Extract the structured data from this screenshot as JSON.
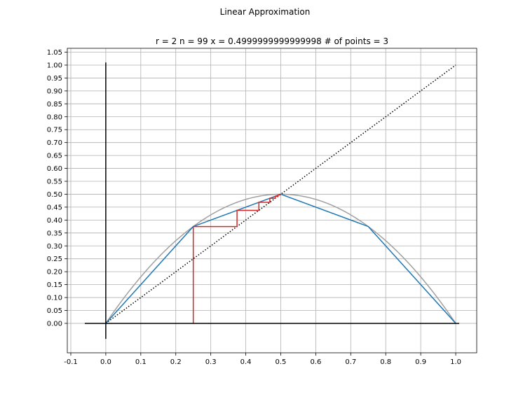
{
  "figure": {
    "suptitle": "Linear Approximation"
  },
  "chart_data": {
    "type": "line",
    "title": "r = 2 n = 99 x = 0.4999999999999998 # of points = 3",
    "xlabel": "",
    "ylabel": "",
    "xlim": [
      -0.11,
      1.06
    ],
    "ylim": [
      -0.114,
      1.065
    ],
    "grid": true,
    "x_ticks": [
      -0.1,
      0.0,
      0.1,
      0.2,
      0.3,
      0.4,
      0.5,
      0.6,
      0.7,
      0.8,
      0.9,
      1.0
    ],
    "x_tick_labels": [
      "-0.1",
      "0.0",
      "0.1",
      "0.2",
      "0.3",
      "0.4",
      "0.5",
      "0.6",
      "0.7",
      "0.8",
      "0.9",
      "1.0"
    ],
    "y_ticks": [
      0.0,
      0.05,
      0.1,
      0.15,
      0.2,
      0.25,
      0.3,
      0.35,
      0.4,
      0.45,
      0.5,
      0.55,
      0.6,
      0.65,
      0.7,
      0.75,
      0.8,
      0.85,
      0.9,
      0.95,
      1.0,
      1.05
    ],
    "y_tick_labels": [
      "0.00",
      "0.05",
      "0.10",
      "0.15",
      "0.20",
      "0.25",
      "0.30",
      "0.35",
      "0.40",
      "0.45",
      "0.50",
      "0.55",
      "0.60",
      "0.65",
      "0.70",
      "0.75",
      "0.80",
      "0.85",
      "0.90",
      "0.95",
      "1.00",
      "1.05"
    ],
    "series": [
      {
        "role": "parabola",
        "color": "#a0a0a0",
        "style": "solid",
        "function": "2*x*(1-x)",
        "x_range": [
          0,
          1
        ]
      },
      {
        "role": "piecewise-linear",
        "color": "#1f77b4",
        "style": "solid",
        "x": [
          0,
          0.25,
          0.5,
          0.75,
          1.0
        ],
        "y": [
          0,
          0.375,
          0.5,
          0.375,
          0
        ]
      },
      {
        "role": "identity",
        "color": "#000000",
        "style": "dotted",
        "x": [
          0,
          1
        ],
        "y": [
          0,
          1
        ]
      },
      {
        "role": "cobweb",
        "color": "#d62728",
        "style": "solid",
        "x": [
          0.25,
          0.25,
          0.375,
          0.375,
          0.4375,
          0.4375,
          0.46875,
          0.46875,
          0.484375,
          0.484375,
          0.4921875,
          0.4921875,
          0.5
        ],
        "y": [
          0,
          0.375,
          0.375,
          0.4375,
          0.4375,
          0.46875,
          0.46875,
          0.484375,
          0.484375,
          0.4921875,
          0.4921875,
          0.49609375,
          0.5
        ]
      }
    ],
    "axis_lines": [
      {
        "role": "horizontal-axis",
        "color": "#000000",
        "x": [
          -0.06,
          1.01
        ],
        "y": [
          0,
          0
        ]
      },
      {
        "role": "vertical-axis",
        "color": "#000000",
        "x": [
          0,
          0
        ],
        "y": [
          -0.06,
          1.01
        ]
      }
    ]
  }
}
